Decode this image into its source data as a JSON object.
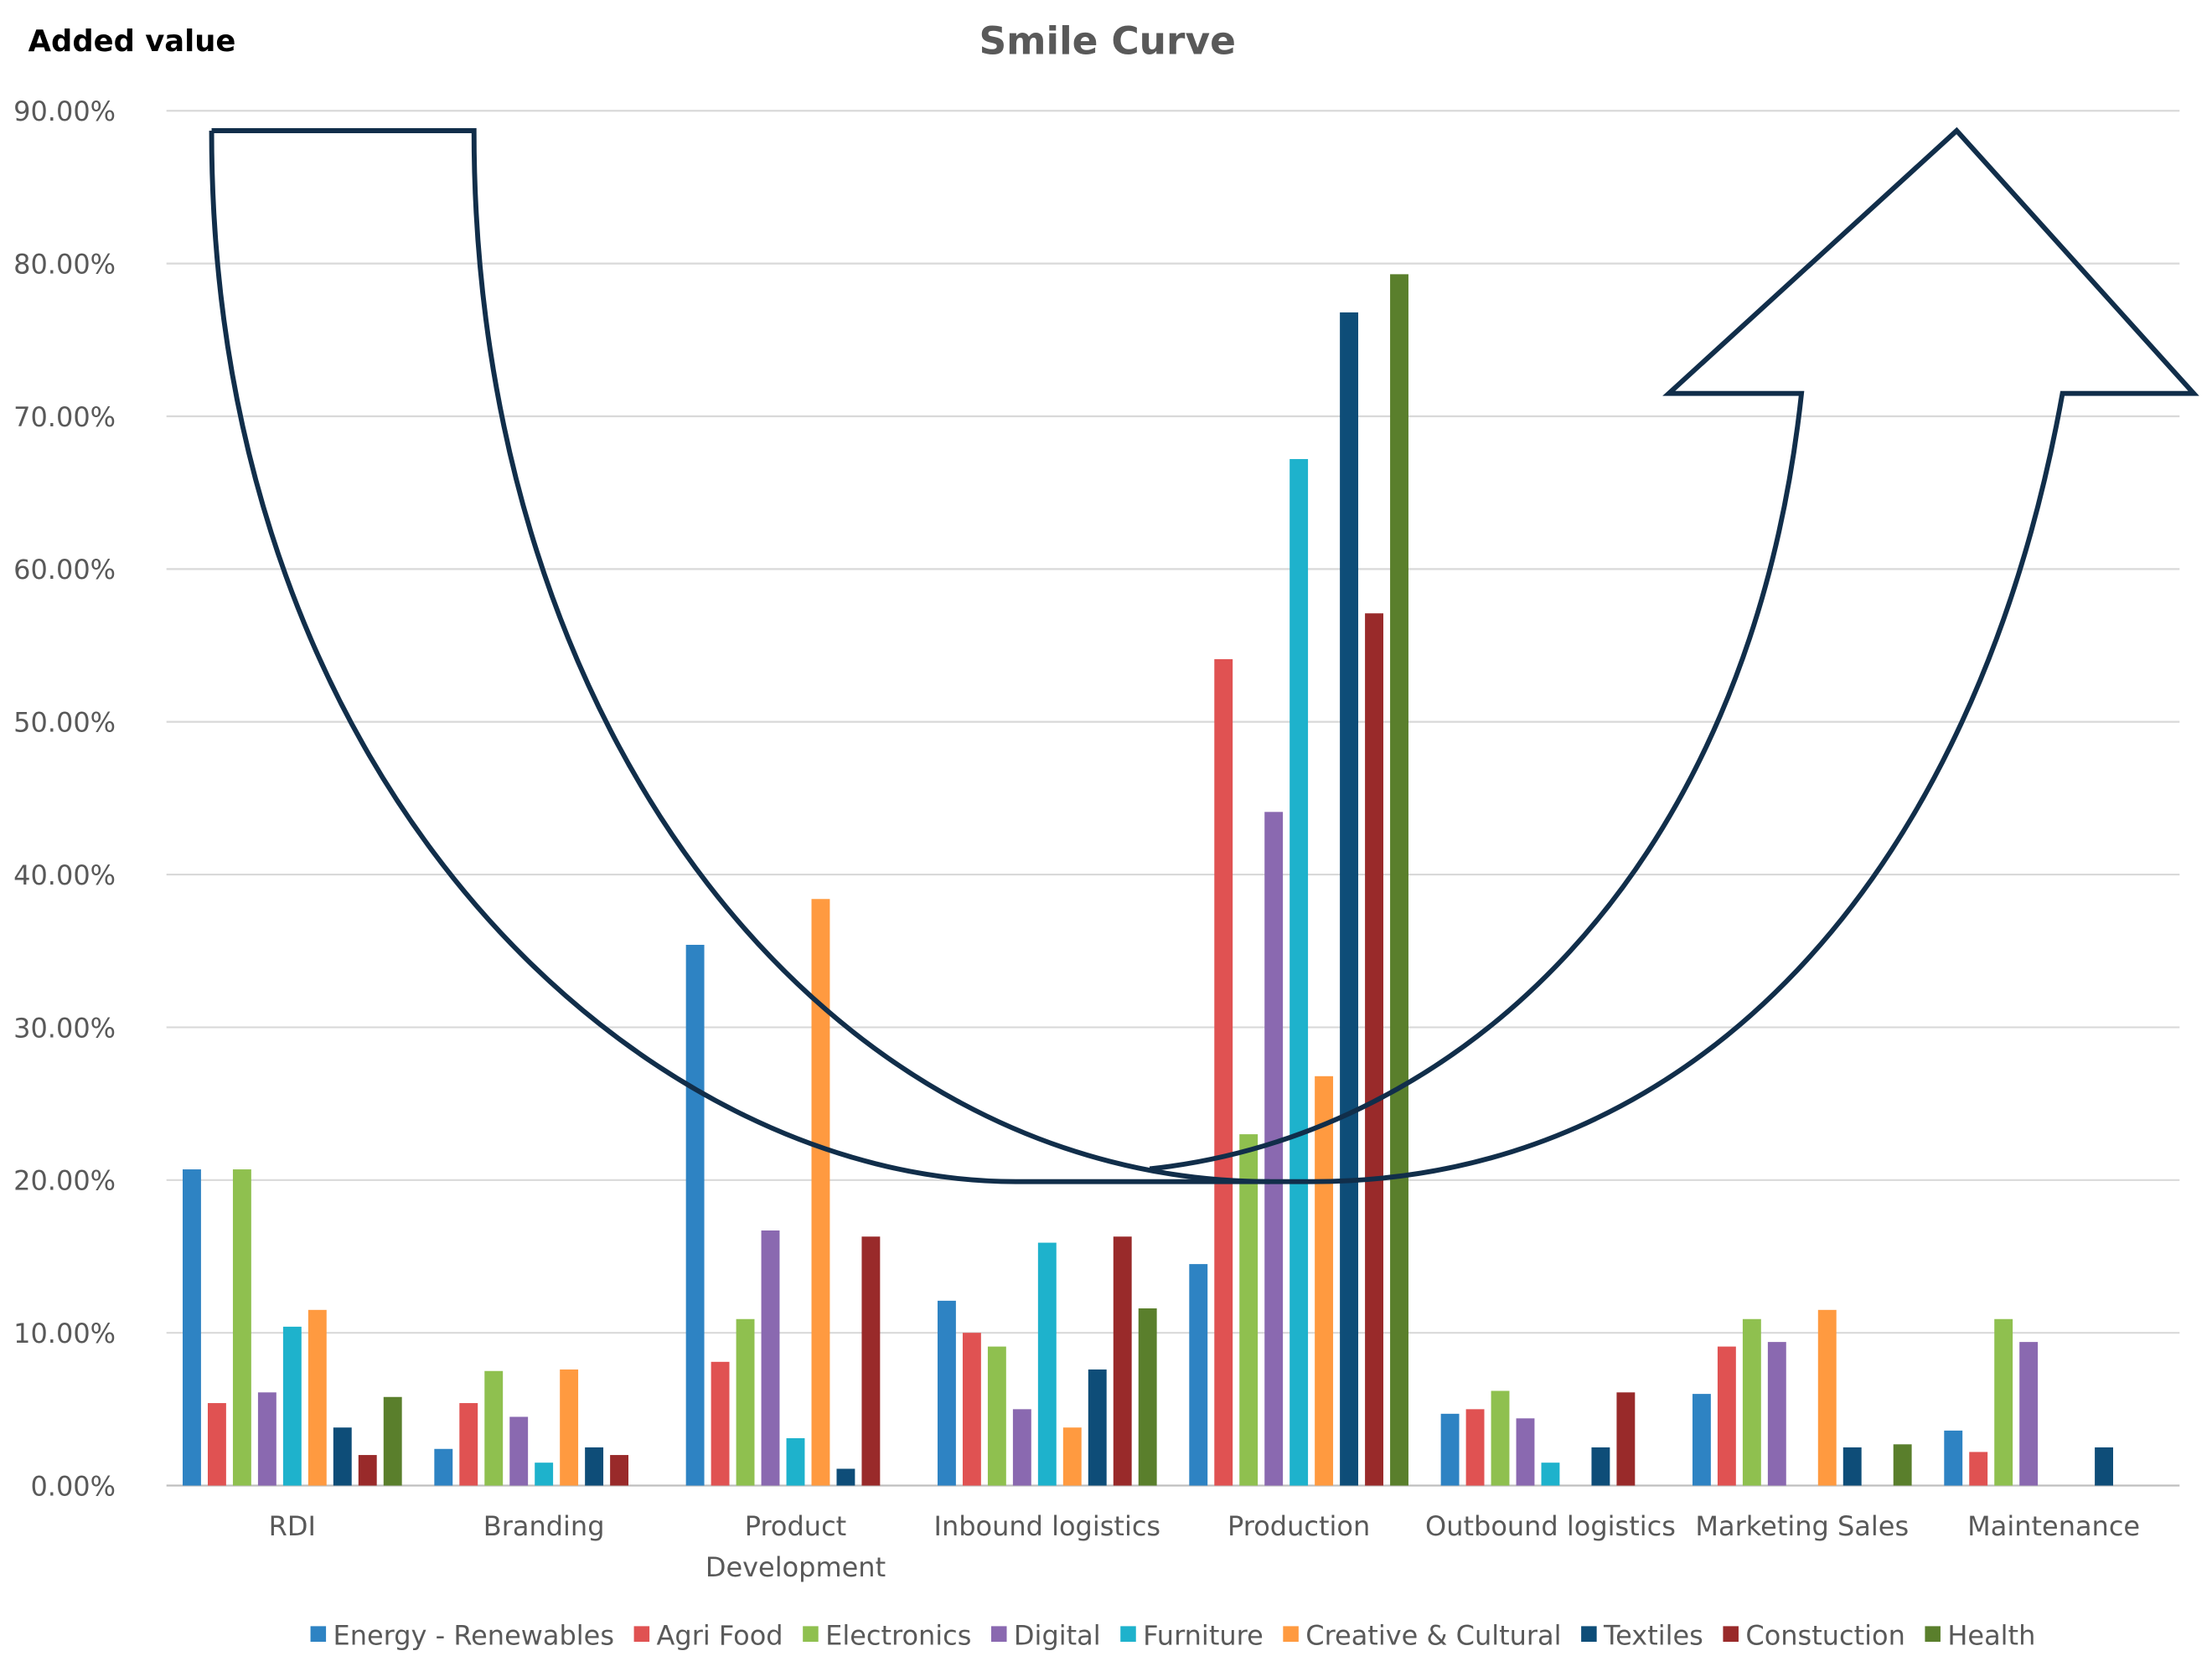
{
  "chart_data": {
    "type": "bar",
    "title": "Smile Curve",
    "y_label": "Added value",
    "categories": [
      "RDI",
      "Branding",
      "Product Development",
      "Inbound logistics",
      "Production",
      "Outbound logistics",
      "Marketing Sales",
      "Maintenance"
    ],
    "series": [
      {
        "name": "Energy - Renewables",
        "color": "#2e83c3",
        "values": [
          20.7,
          2.4,
          35.4,
          12.1,
          14.5,
          4.7,
          6.0,
          3.6
        ]
      },
      {
        "name": "Agri Food",
        "color": "#e05252",
        "values": [
          5.4,
          5.4,
          8.1,
          10.0,
          54.1,
          5.0,
          9.1,
          2.2
        ]
      },
      {
        "name": "Electronics",
        "color": "#8fc04f",
        "values": [
          20.7,
          7.5,
          10.9,
          9.1,
          23.0,
          6.2,
          10.9,
          10.9
        ]
      },
      {
        "name": "Digital",
        "color": "#8a69b0",
        "values": [
          6.1,
          4.5,
          16.7,
          5.0,
          44.1,
          4.4,
          9.4,
          9.4
        ]
      },
      {
        "name": "Furniture",
        "color": "#1eb2cc",
        "values": [
          10.4,
          1.5,
          3.1,
          15.9,
          67.2,
          1.5,
          null,
          null
        ]
      },
      {
        "name": "Creative & Cultural",
        "color": "#ff9a40",
        "values": [
          11.5,
          7.6,
          38.4,
          3.8,
          26.8,
          null,
          11.5,
          null
        ]
      },
      {
        "name": "Textiles",
        "color": "#0e4d78",
        "values": [
          3.8,
          2.5,
          1.1,
          7.6,
          76.8,
          2.5,
          2.5,
          2.5
        ]
      },
      {
        "name": "Constuction",
        "color": "#992a2a",
        "values": [
          2.0,
          2.0,
          16.3,
          16.3,
          57.1,
          6.1,
          null,
          null
        ]
      },
      {
        "name": "Health",
        "color": "#5a7f2c",
        "values": [
          5.8,
          null,
          null,
          11.6,
          79.3,
          null,
          2.7,
          null
        ]
      }
    ],
    "ylim": [
      0,
      90
    ],
    "yticks": [
      {
        "value": 0,
        "label": "0.00%"
      },
      {
        "value": 10,
        "label": "10.00%"
      },
      {
        "value": 20,
        "label": "20.00%"
      },
      {
        "value": 30,
        "label": "30.00%"
      },
      {
        "value": 40,
        "label": "40.00%"
      },
      {
        "value": 50,
        "label": "50.00%"
      },
      {
        "value": 60,
        "label": "60.00%"
      },
      {
        "value": 70,
        "label": "70.00%"
      },
      {
        "value": 80,
        "label": "80.00%"
      },
      {
        "value": 90,
        "label": "90.00%"
      }
    ],
    "grid": true,
    "legend": "bottom"
  }
}
